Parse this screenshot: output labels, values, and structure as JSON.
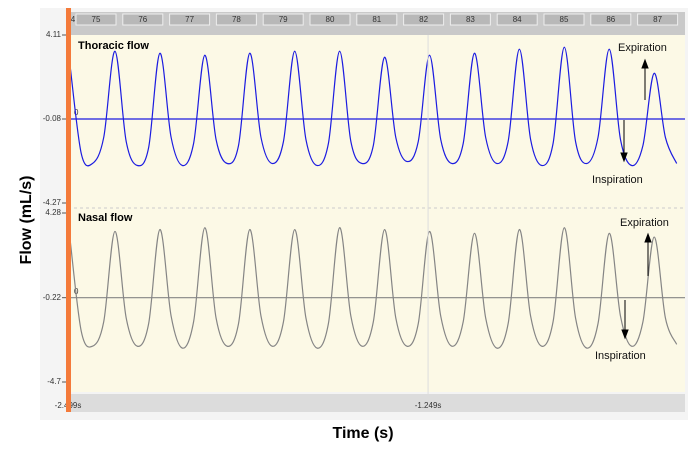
{
  "labels": {
    "y": "Flow (mL/s)",
    "x": "Time (s)"
  },
  "header": {
    "segments": [
      "4",
      "75",
      "76",
      "77",
      "78",
      "79",
      "80",
      "81",
      "82",
      "83",
      "84",
      "85",
      "86",
      "87"
    ]
  },
  "chart_data": [
    {
      "type": "line",
      "title": "Thoracic flow",
      "annotations": [
        "Expiration",
        "Inspiration"
      ],
      "baseline_label": "0",
      "color": "#1c1ce0",
      "x": [
        -2.492,
        -2.453,
        -2.414,
        -2.375,
        -2.336,
        -2.297,
        -2.258,
        -2.219,
        -2.18,
        -2.141,
        -2.102,
        -2.063,
        -2.024,
        -1.985,
        -1.946,
        -1.907,
        -1.868,
        -1.829,
        -1.79,
        -1.751,
        -1.712,
        -1.673,
        -1.634,
        -1.595,
        -1.556,
        -1.517,
        -1.478,
        -1.439,
        -1.4,
        -1.361,
        -1.322,
        -1.283,
        -1.244,
        -1.205,
        -1.166,
        -1.127,
        -1.088,
        -1.049,
        -1.01,
        -0.971,
        -0.932,
        -0.893,
        -0.854,
        -0.815,
        -0.776,
        -0.737,
        -0.698,
        -0.659,
        -0.62,
        -0.581,
        -0.542,
        -0.503,
        -0.464,
        -0.425,
        -0.386
      ],
      "values": [
        2.6,
        -1.8,
        -2.3,
        -1.0,
        3.3,
        -1.2,
        -2.4,
        -1.5,
        3.2,
        -1.0,
        -2.4,
        -1.3,
        3.1,
        -1.1,
        -2.3,
        -1.4,
        3.2,
        -1.0,
        -2.3,
        -1.2,
        3.3,
        -1.1,
        -2.4,
        -1.3,
        3.3,
        -1.2,
        -2.3,
        -1.4,
        3.0,
        -1.0,
        -2.2,
        -1.2,
        3.1,
        -1.1,
        -2.3,
        -1.3,
        3.2,
        -1.0,
        -2.3,
        -1.2,
        3.4,
        -1.1,
        -2.4,
        -1.3,
        3.5,
        -1.2,
        -2.3,
        -1.0,
        3.4,
        -1.1,
        -2.4,
        -1.4,
        2.2,
        -1.0,
        -2.3
      ],
      "xlim": [
        -2.499,
        -0.357
      ],
      "ylim": [
        -4.27,
        4.11
      ],
      "yticks": [
        4.11,
        -0.08,
        -4.27
      ]
    },
    {
      "type": "line",
      "title": "Nasal flow",
      "annotations": [
        "Expiration",
        "Inspiration"
      ],
      "baseline_label": "0",
      "color": "#858585",
      "x": [
        -2.492,
        -2.453,
        -2.414,
        -2.375,
        -2.336,
        -2.297,
        -2.258,
        -2.219,
        -2.18,
        -2.141,
        -2.102,
        -2.063,
        -2.024,
        -1.985,
        -1.946,
        -1.907,
        -1.868,
        -1.829,
        -1.79,
        -1.751,
        -1.712,
        -1.673,
        -1.634,
        -1.595,
        -1.556,
        -1.517,
        -1.478,
        -1.439,
        -1.4,
        -1.361,
        -1.322,
        -1.283,
        -1.244,
        -1.205,
        -1.166,
        -1.127,
        -1.088,
        -1.049,
        -1.01,
        -0.971,
        -0.932,
        -0.893,
        -0.854,
        -0.815,
        -0.776,
        -0.737,
        -0.698,
        -0.659,
        -0.62,
        -0.581,
        -0.542,
        -0.503,
        -0.464,
        -0.425,
        -0.386
      ],
      "values": [
        2.9,
        -2.0,
        -2.8,
        -1.5,
        3.3,
        -1.3,
        -2.8,
        -1.6,
        3.4,
        -1.2,
        -2.9,
        -1.5,
        3.5,
        -1.3,
        -2.8,
        -1.6,
        3.4,
        -1.2,
        -2.8,
        -1.5,
        3.4,
        -1.3,
        -2.9,
        -1.6,
        3.5,
        -1.2,
        -2.8,
        -1.5,
        3.4,
        -1.3,
        -2.8,
        -1.6,
        3.3,
        -1.2,
        -2.8,
        -1.5,
        3.2,
        -1.3,
        -2.9,
        -1.6,
        3.4,
        -1.2,
        -2.8,
        -1.5,
        3.5,
        -1.3,
        -2.9,
        -1.6,
        3.2,
        -1.2,
        -2.8,
        -1.5,
        3.0,
        -1.3,
        -2.7
      ],
      "xlim": [
        -2.499,
        -0.357
      ],
      "ylim": [
        -4.7,
        4.28
      ],
      "yticks": [
        4.28,
        -0.22,
        -4.7
      ],
      "xticks": [
        {
          "value": -2.499,
          "label": "-2.499s"
        },
        {
          "value": -1.249,
          "label": "-1.249s"
        }
      ]
    }
  ]
}
